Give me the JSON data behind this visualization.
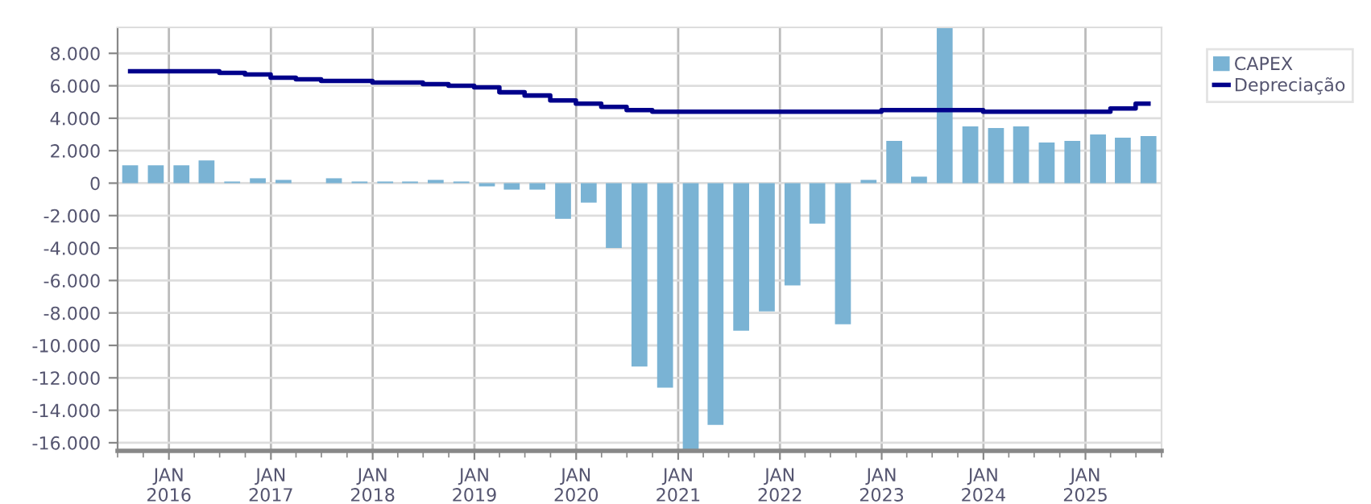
{
  "chart_data": {
    "type": "bar",
    "x": [
      "2015-08-15",
      "2015-11-15",
      "2016-02-15",
      "2016-05-15",
      "2016-08-15",
      "2016-11-15",
      "2017-02-15",
      "2017-05-15",
      "2017-08-15",
      "2017-11-15",
      "2018-02-15",
      "2018-05-15",
      "2018-08-15",
      "2018-11-15",
      "2019-02-15",
      "2019-05-15",
      "2019-08-15",
      "2019-11-15",
      "2020-02-15",
      "2020-05-15",
      "2020-08-15",
      "2020-11-15",
      "2021-02-15",
      "2021-05-15",
      "2021-08-15",
      "2021-11-15",
      "2022-02-15",
      "2022-05-15",
      "2022-08-15",
      "2022-11-15",
      "2023-02-15",
      "2023-05-15",
      "2023-08-15",
      "2023-11-15",
      "2024-02-15",
      "2024-05-15",
      "2024-08-15",
      "2024-11-15",
      "2025-02-15",
      "2025-05-15",
      "2025-08-15"
    ],
    "series": [
      {
        "name": "CAPEX",
        "color": "#7ab3d4",
        "values": [
          1100,
          1100,
          1100,
          1400,
          100,
          300,
          200,
          0,
          300,
          100,
          100,
          100,
          200,
          100,
          -200,
          -400,
          -400,
          -2200,
          -1200,
          -4000,
          -11300,
          -12600,
          -16500,
          -14900,
          -9100,
          -7900,
          -6300,
          -2500,
          -8700,
          200,
          2600,
          400,
          9600,
          3500,
          3400,
          3500,
          2500,
          2600,
          3000,
          2800,
          2900
        ]
      },
      {
        "name": "Depreciação",
        "type": "step",
        "color": "#00008b",
        "values": [
          6900,
          6900,
          6900,
          6900,
          6800,
          6700,
          6500,
          6400,
          6300,
          6300,
          6200,
          6200,
          6100,
          6000,
          5900,
          5600,
          5400,
          5100,
          4900,
          4700,
          4500,
          4400,
          4400,
          4400,
          4400,
          4400,
          4400,
          4400,
          4400,
          4400,
          4500,
          4500,
          4500,
          4500,
          4400,
          4400,
          4400,
          4400,
          4400,
          4600,
          4900
        ]
      }
    ],
    "xlim": [
      "2015-07-01",
      "2025-10-01"
    ],
    "xticks": [
      {
        "value": "2016-01-01",
        "label": "JAN\n2016"
      },
      {
        "value": "2017-01-01",
        "label": "JAN\n2017"
      },
      {
        "value": "2018-01-01",
        "label": "JAN\n2018"
      },
      {
        "value": "2019-01-01",
        "label": "JAN\n2019"
      },
      {
        "value": "2020-01-01",
        "label": "JAN\n2020"
      },
      {
        "value": "2021-01-01",
        "label": "JAN\n2021"
      },
      {
        "value": "2022-01-01",
        "label": "JAN\n2022"
      },
      {
        "value": "2023-01-01",
        "label": "JAN\n2023"
      },
      {
        "value": "2024-01-01",
        "label": "JAN\n2024"
      },
      {
        "value": "2025-01-01",
        "label": "JAN\n2025"
      }
    ],
    "ylim": [
      -16500,
      9600
    ],
    "yticks": [
      {
        "value": 8000,
        "label": "8.000"
      },
      {
        "value": 6000,
        "label": "6.000"
      },
      {
        "value": 4000,
        "label": "4.000"
      },
      {
        "value": 2000,
        "label": "2.000"
      },
      0,
      {
        "value": -2000,
        "label": "-2.000"
      },
      {
        "value": -4000,
        "label": "-4.000"
      },
      {
        "value": -6000,
        "label": "-6.000"
      },
      {
        "value": -8000,
        "label": "-8.000"
      },
      {
        "value": -10000,
        "label": "-10.000"
      },
      {
        "value": -12000,
        "label": "-12.000"
      },
      {
        "value": -14000,
        "label": "-14.000"
      },
      {
        "value": -16000,
        "label": "-16.000"
      }
    ],
    "grid": true,
    "legend": "top right"
  }
}
